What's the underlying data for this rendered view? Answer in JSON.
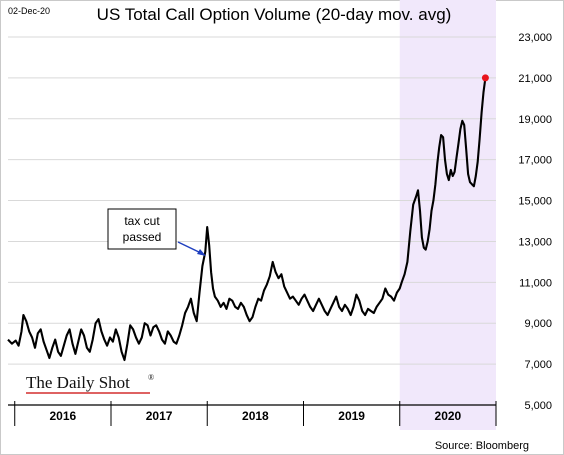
{
  "header": {
    "date": "02-Dec-20",
    "title": "US Total Call Option Volume (20-day mov. avg)"
  },
  "branding": {
    "name": "The Daily Shot",
    "mark": "®"
  },
  "footer": {
    "source": "Source: Bloomberg"
  },
  "annotation": {
    "line1": "tax cut",
    "line2": "passed"
  },
  "colors": {
    "line": "#000000",
    "shade": "#f1e8fb",
    "endpoint": "#e8141c",
    "arrow": "#1f3fbf"
  },
  "chart_data": {
    "type": "line",
    "title": "US Total Call Option Volume (20-day mov. avg)",
    "xlabel": "",
    "ylabel": "",
    "x_ticks": [
      "2016",
      "2017",
      "2018",
      "2019",
      "2020"
    ],
    "x_range": [
      2015.93,
      2021.0
    ],
    "ylim": [
      5000,
      23000
    ],
    "y_ticks": [
      5000,
      7000,
      9000,
      11000,
      13000,
      15000,
      17000,
      19000,
      21000,
      23000
    ],
    "y_tick_labels": [
      "5,000",
      "7,000",
      "9,000",
      "11,000",
      "13,000",
      "15,000",
      "17,000",
      "19,000",
      "21,000",
      "23,000"
    ],
    "y_axis_side": "right",
    "grid": true,
    "shaded_region": {
      "from": 2020.0,
      "to": 2021.0,
      "label": "2020"
    },
    "series": [
      {
        "points": [
          [
            2015.93,
            8200
          ],
          [
            2015.97,
            8000
          ],
          [
            2016.01,
            8150
          ],
          [
            2016.04,
            7900
          ],
          [
            2016.07,
            8600
          ],
          [
            2016.09,
            9400
          ],
          [
            2016.12,
            9100
          ],
          [
            2016.15,
            8600
          ],
          [
            2016.18,
            8300
          ],
          [
            2016.21,
            7800
          ],
          [
            2016.24,
            8500
          ],
          [
            2016.27,
            8700
          ],
          [
            2016.3,
            8100
          ],
          [
            2016.33,
            7700
          ],
          [
            2016.36,
            7300
          ],
          [
            2016.39,
            7800
          ],
          [
            2016.42,
            8200
          ],
          [
            2016.45,
            7600
          ],
          [
            2016.48,
            7400
          ],
          [
            2016.51,
            7900
          ],
          [
            2016.54,
            8400
          ],
          [
            2016.57,
            8700
          ],
          [
            2016.6,
            8000
          ],
          [
            2016.63,
            7500
          ],
          [
            2016.66,
            8100
          ],
          [
            2016.69,
            8700
          ],
          [
            2016.72,
            8400
          ],
          [
            2016.75,
            7800
          ],
          [
            2016.78,
            7600
          ],
          [
            2016.81,
            8200
          ],
          [
            2016.84,
            9000
          ],
          [
            2016.87,
            9200
          ],
          [
            2016.9,
            8600
          ],
          [
            2016.93,
            8200
          ],
          [
            2016.96,
            7900
          ],
          [
            2016.99,
            8300
          ],
          [
            2017.02,
            8100
          ],
          [
            2017.05,
            8700
          ],
          [
            2017.08,
            8300
          ],
          [
            2017.11,
            7600
          ],
          [
            2017.14,
            7200
          ],
          [
            2017.17,
            8000
          ],
          [
            2017.2,
            8900
          ],
          [
            2017.23,
            8700
          ],
          [
            2017.26,
            8300
          ],
          [
            2017.29,
            8000
          ],
          [
            2017.32,
            8300
          ],
          [
            2017.35,
            9000
          ],
          [
            2017.38,
            8900
          ],
          [
            2017.41,
            8400
          ],
          [
            2017.44,
            8800
          ],
          [
            2017.47,
            8900
          ],
          [
            2017.5,
            8600
          ],
          [
            2017.53,
            8200
          ],
          [
            2017.56,
            8000
          ],
          [
            2017.59,
            8600
          ],
          [
            2017.62,
            8400
          ],
          [
            2017.65,
            8100
          ],
          [
            2017.68,
            8000
          ],
          [
            2017.71,
            8400
          ],
          [
            2017.74,
            8900
          ],
          [
            2017.77,
            9500
          ],
          [
            2017.8,
            9800
          ],
          [
            2017.83,
            10200
          ],
          [
            2017.86,
            9500
          ],
          [
            2017.89,
            9100
          ],
          [
            2017.92,
            10500
          ],
          [
            2017.95,
            11800
          ],
          [
            2017.98,
            12500
          ],
          [
            2018.0,
            13700
          ],
          [
            2018.02,
            12800
          ],
          [
            2018.04,
            11500
          ],
          [
            2018.06,
            10700
          ],
          [
            2018.08,
            10300
          ],
          [
            2018.11,
            10100
          ],
          [
            2018.14,
            9800
          ],
          [
            2018.17,
            10000
          ],
          [
            2018.2,
            9700
          ],
          [
            2018.23,
            10200
          ],
          [
            2018.26,
            10100
          ],
          [
            2018.29,
            9800
          ],
          [
            2018.32,
            9700
          ],
          [
            2018.35,
            10000
          ],
          [
            2018.38,
            9800
          ],
          [
            2018.41,
            9400
          ],
          [
            2018.44,
            9100
          ],
          [
            2018.47,
            9300
          ],
          [
            2018.5,
            9800
          ],
          [
            2018.53,
            10200
          ],
          [
            2018.56,
            10100
          ],
          [
            2018.59,
            10600
          ],
          [
            2018.62,
            10900
          ],
          [
            2018.65,
            11300
          ],
          [
            2018.68,
            12000
          ],
          [
            2018.71,
            11500
          ],
          [
            2018.74,
            11200
          ],
          [
            2018.77,
            11400
          ],
          [
            2018.8,
            10800
          ],
          [
            2018.83,
            10500
          ],
          [
            2018.86,
            10200
          ],
          [
            2018.89,
            10300
          ],
          [
            2018.92,
            10100
          ],
          [
            2018.95,
            9900
          ],
          [
            2018.98,
            10200
          ],
          [
            2019.01,
            10400
          ],
          [
            2019.04,
            10100
          ],
          [
            2019.07,
            9800
          ],
          [
            2019.1,
            9600
          ],
          [
            2019.13,
            9900
          ],
          [
            2019.16,
            10200
          ],
          [
            2019.19,
            9900
          ],
          [
            2019.22,
            9600
          ],
          [
            2019.25,
            9400
          ],
          [
            2019.28,
            9700
          ],
          [
            2019.31,
            10000
          ],
          [
            2019.34,
            10300
          ],
          [
            2019.37,
            9800
          ],
          [
            2019.4,
            9600
          ],
          [
            2019.43,
            9900
          ],
          [
            2019.46,
            9700
          ],
          [
            2019.49,
            9400
          ],
          [
            2019.52,
            9800
          ],
          [
            2019.55,
            10400
          ],
          [
            2019.58,
            10100
          ],
          [
            2019.61,
            9600
          ],
          [
            2019.64,
            9400
          ],
          [
            2019.67,
            9700
          ],
          [
            2019.7,
            9600
          ],
          [
            2019.73,
            9500
          ],
          [
            2019.76,
            9800
          ],
          [
            2019.79,
            10000
          ],
          [
            2019.82,
            10200
          ],
          [
            2019.85,
            10700
          ],
          [
            2019.88,
            10400
          ],
          [
            2019.91,
            10300
          ],
          [
            2019.94,
            10100
          ],
          [
            2019.97,
            10500
          ],
          [
            2020.0,
            10700
          ],
          [
            2020.02,
            11000
          ],
          [
            2020.05,
            11400
          ],
          [
            2020.08,
            12000
          ],
          [
            2020.11,
            13500
          ],
          [
            2020.14,
            14800
          ],
          [
            2020.17,
            15200
          ],
          [
            2020.19,
            15500
          ],
          [
            2020.21,
            14500
          ],
          [
            2020.23,
            13200
          ],
          [
            2020.25,
            12700
          ],
          [
            2020.27,
            12600
          ],
          [
            2020.29,
            13000
          ],
          [
            2020.31,
            13600
          ],
          [
            2020.33,
            14500
          ],
          [
            2020.35,
            15000
          ],
          [
            2020.37,
            15800
          ],
          [
            2020.39,
            16800
          ],
          [
            2020.41,
            17600
          ],
          [
            2020.43,
            18200
          ],
          [
            2020.45,
            18100
          ],
          [
            2020.47,
            17000
          ],
          [
            2020.49,
            16300
          ],
          [
            2020.51,
            16000
          ],
          [
            2020.53,
            16500
          ],
          [
            2020.55,
            16200
          ],
          [
            2020.57,
            16400
          ],
          [
            2020.59,
            17100
          ],
          [
            2020.61,
            17800
          ],
          [
            2020.63,
            18500
          ],
          [
            2020.65,
            18900
          ],
          [
            2020.67,
            18700
          ],
          [
            2020.69,
            17500
          ],
          [
            2020.71,
            16300
          ],
          [
            2020.73,
            15900
          ],
          [
            2020.75,
            15800
          ],
          [
            2020.77,
            15700
          ],
          [
            2020.79,
            16200
          ],
          [
            2020.81,
            16900
          ],
          [
            2020.83,
            18000
          ],
          [
            2020.85,
            19300
          ],
          [
            2020.87,
            20300
          ],
          [
            2020.89,
            21000
          ]
        ]
      }
    ]
  }
}
